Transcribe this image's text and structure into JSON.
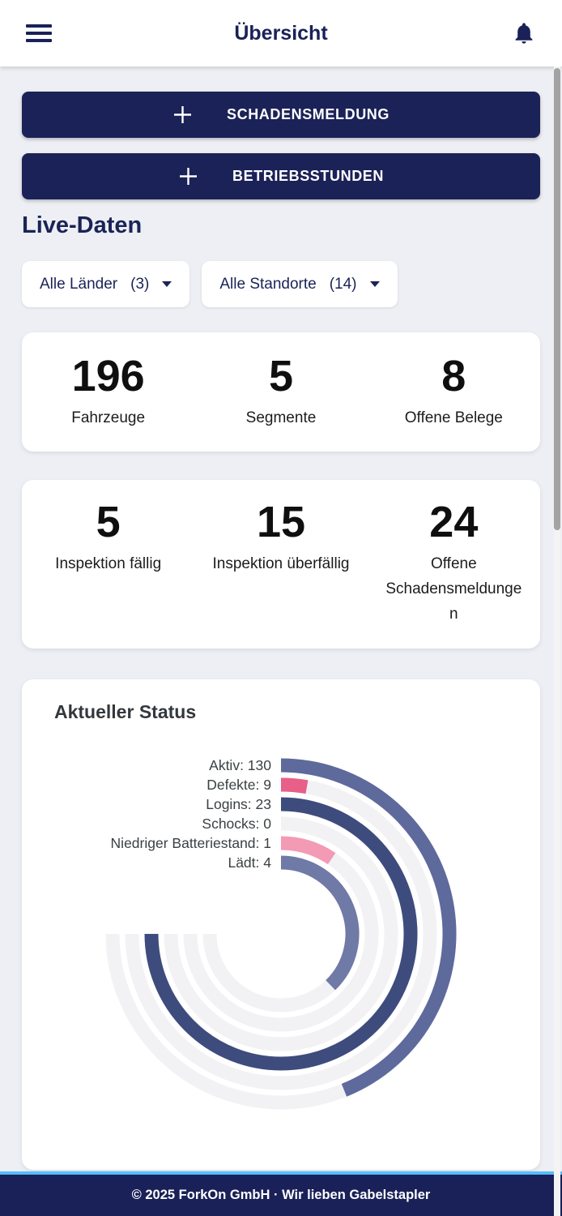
{
  "header": {
    "title": "Übersicht"
  },
  "actions": [
    {
      "label": "SCHADENSMELDUNG"
    },
    {
      "label": "BETRIEBSSTUNDEN"
    }
  ],
  "section_title": "Live-Daten",
  "filters": [
    {
      "label": "Alle Länder",
      "count": "(3)"
    },
    {
      "label": "Alle Standorte",
      "count": "(14)"
    }
  ],
  "stat_cards": [
    {
      "stats": [
        {
          "value": "196",
          "label": "Fahrzeuge"
        },
        {
          "value": "5",
          "label": "Segmente"
        },
        {
          "value": "8",
          "label": "Offene Belege"
        }
      ]
    },
    {
      "stats": [
        {
          "value": "5",
          "label": "Inspektion fällig"
        },
        {
          "value": "15",
          "label": "Inspektion überfällig"
        },
        {
          "value": "24",
          "label": "Offene Schadensmeldungen"
        }
      ]
    }
  ],
  "chart_data": {
    "type": "radial-bar",
    "title": "Aktueller Status",
    "legend_position": "left",
    "start_angle_deg": 0,
    "max_angle_deg": 270,
    "track_color": "#f2f2f4",
    "label_color": "#3b4043",
    "series": [
      {
        "label": "Aktiv",
        "value": 130,
        "sweep_deg": 158,
        "color": "#5e6a9c"
      },
      {
        "label": "Defekte",
        "value": 9,
        "sweep_deg": 10,
        "color": "#e85f88"
      },
      {
        "label": "Logins",
        "value": 23,
        "sweep_deg": 270,
        "color": "#3e4c7d"
      },
      {
        "label": "Schocks",
        "value": 0,
        "sweep_deg": 0,
        "color": "#8a93b8"
      },
      {
        "label": "Niedriger Batteriestand",
        "value": 1,
        "sweep_deg": 34,
        "color": "#f39ab5"
      },
      {
        "label": "Lädt",
        "value": 4,
        "sweep_deg": 136,
        "color": "#6f7aa6"
      }
    ]
  },
  "footer": {
    "text": "© 2025 ForkOn GmbH · Wir lieben Gabelstapler"
  },
  "icons": {
    "menu": "menu-icon",
    "notifications": "bell-icon",
    "plus": "plus-icon",
    "caret": "caret-down-icon"
  },
  "colors": {
    "navy": "#1b2257",
    "background": "#edeff4",
    "accent_cyan": "#56bdf7"
  }
}
